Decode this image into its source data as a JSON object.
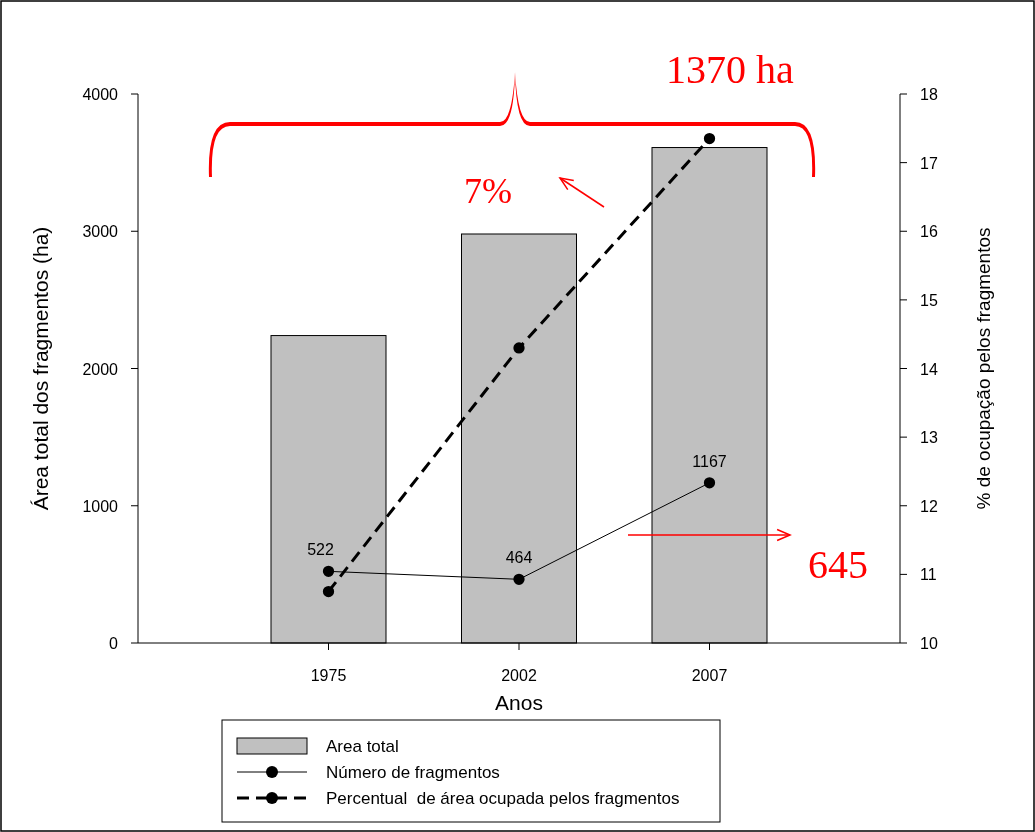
{
  "chart_data": {
    "type": "bar",
    "xlabel": "Anos",
    "ylabel": "Área total dos fragmentos (ha)",
    "y2label": "% de ocupação pelos fragmentos",
    "categories": [
      "1975",
      "2002",
      "2007"
    ],
    "series": [
      {
        "name": "Area total",
        "color": "#c0c0c0",
        "values": [
          2240,
          2980,
          3610
        ]
      },
      {
        "name": "Número de fragmentos",
        "type": "line",
        "color": "#000000",
        "values": [
          522,
          464,
          1167
        ],
        "value_labels": [
          "522",
          "464",
          "1167"
        ],
        "line_style": "solid"
      },
      {
        "name": "Percentual  de área ocupada pelos fragmentos",
        "type": "line",
        "axis": "y2",
        "color": "#000000",
        "values": [
          10.75,
          14.3,
          17.35
        ],
        "line_style": "dashed"
      }
    ],
    "ylim": [
      0,
      4000
    ],
    "yticks": [
      0,
      1000,
      2000,
      3000,
      4000
    ],
    "y2lim": [
      10,
      18
    ],
    "y2ticks": [
      10,
      11,
      12,
      13,
      14,
      15,
      16,
      17,
      18
    ],
    "marker": "circle",
    "grid": false,
    "legend": "bottom",
    "annotations": [
      "1370 ha",
      "7%",
      "645"
    ]
  }
}
